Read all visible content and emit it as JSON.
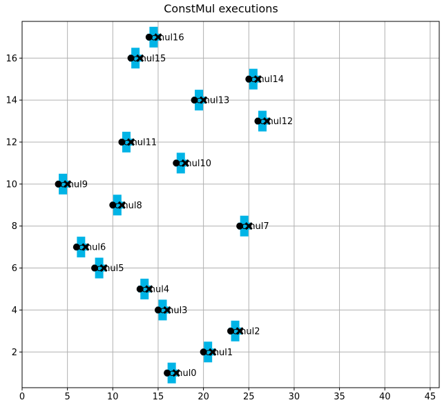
{
  "chart_data": {
    "type": "scatter",
    "title": "ConstMul executions",
    "xlabel": "",
    "ylabel": "",
    "xlim": [
      0,
      46
    ],
    "ylim": [
      0.3,
      17.75
    ],
    "xticks": [
      0,
      5,
      10,
      15,
      20,
      25,
      30,
      35,
      40,
      45
    ],
    "yticks": [
      2,
      4,
      6,
      8,
      10,
      12,
      14,
      16
    ],
    "grid": true,
    "colors": {
      "marker_box": "#00b4e6",
      "dot": "#000000",
      "cross": "#000000",
      "grid": "#b0b0b0"
    },
    "points": [
      {
        "label": "cmul0",
        "start": 16.0,
        "end": 17.0,
        "y": 1
      },
      {
        "label": "cmul1",
        "start": 20.0,
        "end": 21.0,
        "y": 2
      },
      {
        "label": "cmul2",
        "start": 23.0,
        "end": 24.0,
        "y": 3
      },
      {
        "label": "cmul3",
        "start": 15.0,
        "end": 16.0,
        "y": 4
      },
      {
        "label": "cmul4",
        "start": 13.0,
        "end": 14.0,
        "y": 5
      },
      {
        "label": "cmul5",
        "start": 8.0,
        "end": 9.0,
        "y": 6
      },
      {
        "label": "cmul6",
        "start": 6.0,
        "end": 7.0,
        "y": 7
      },
      {
        "label": "cmul7",
        "start": 24.0,
        "end": 25.0,
        "y": 8
      },
      {
        "label": "cmul8",
        "start": 10.0,
        "end": 11.0,
        "y": 9
      },
      {
        "label": "cmul9",
        "start": 4.0,
        "end": 5.0,
        "y": 10
      },
      {
        "label": "cmul10",
        "start": 17.0,
        "end": 18.0,
        "y": 11
      },
      {
        "label": "cmul11",
        "start": 11.0,
        "end": 12.0,
        "y": 12
      },
      {
        "label": "cmul12",
        "start": 26.0,
        "end": 27.0,
        "y": 13
      },
      {
        "label": "cmul13",
        "start": 19.0,
        "end": 20.0,
        "y": 14
      },
      {
        "label": "cmul14",
        "start": 25.0,
        "end": 26.0,
        "y": 15
      },
      {
        "label": "cmul15",
        "start": 12.0,
        "end": 13.0,
        "y": 16
      },
      {
        "label": "cmul16",
        "start": 14.0,
        "end": 15.0,
        "y": 17
      }
    ]
  }
}
